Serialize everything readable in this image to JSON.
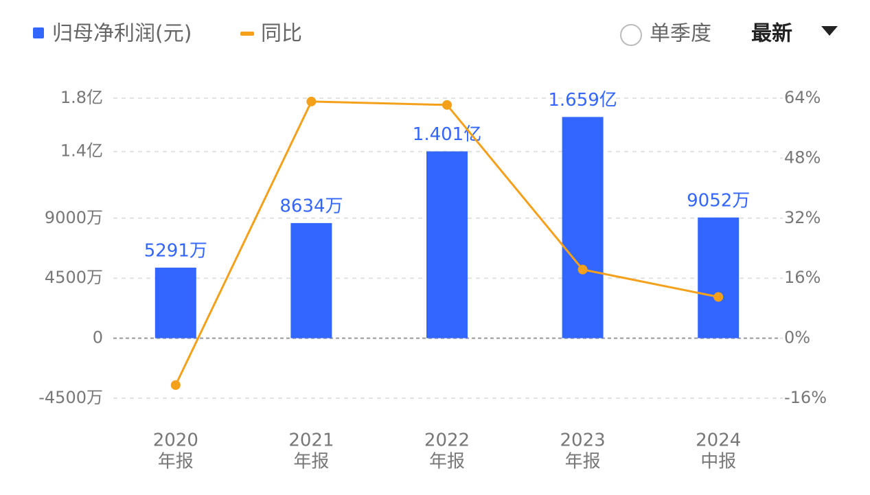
{
  "chart_data": {
    "type": "bar_line",
    "legend": [
      {
        "label": "归母净利润(元)"
      },
      {
        "label": "同比"
      }
    ],
    "controls": {
      "toggle": "单季度",
      "sort": "最新"
    },
    "categories": [
      [
        "2020",
        "年报"
      ],
      [
        "2021",
        "年报"
      ],
      [
        "2022",
        "年报"
      ],
      [
        "2023",
        "年报"
      ],
      [
        "2024",
        "中报"
      ]
    ],
    "series": [
      {
        "name": "归母净利润(元)",
        "type": "bar",
        "color": "#3366ff",
        "values": [
          52910000,
          86340000,
          140100000,
          165900000,
          90520000
        ],
        "value_labels": [
          "5291万",
          "8634万",
          "1.401亿",
          "1.659亿",
          "9052万"
        ]
      },
      {
        "name": "同比",
        "type": "line",
        "axis": "y2",
        "color": "#f5a01a",
        "values": [
          -12.5,
          63.1,
          62.2,
          18.3,
          11.0
        ]
      }
    ],
    "ylim": [
      -45000000,
      180000000
    ],
    "yticks": [
      {
        "value": -45000000,
        "label": "-4500万"
      },
      0,
      {
        "value": 45000000,
        "label": "4500万"
      },
      {
        "value": 90000000,
        "label": "9000万"
      },
      {
        "value": 140000000,
        "label": "1.4亿"
      },
      {
        "value": 180000000,
        "label": "1.8亿"
      }
    ],
    "y2lim": [
      -16,
      64
    ],
    "y2ticks": [
      {
        "value": -16,
        "label": "-16%"
      },
      {
        "value": 0,
        "label": "0%"
      },
      {
        "value": 16,
        "label": "16%"
      },
      {
        "value": 32,
        "label": "32%"
      },
      {
        "value": 48,
        "label": "48%"
      },
      {
        "value": 64,
        "label": "64%"
      }
    ],
    "grid": true
  }
}
